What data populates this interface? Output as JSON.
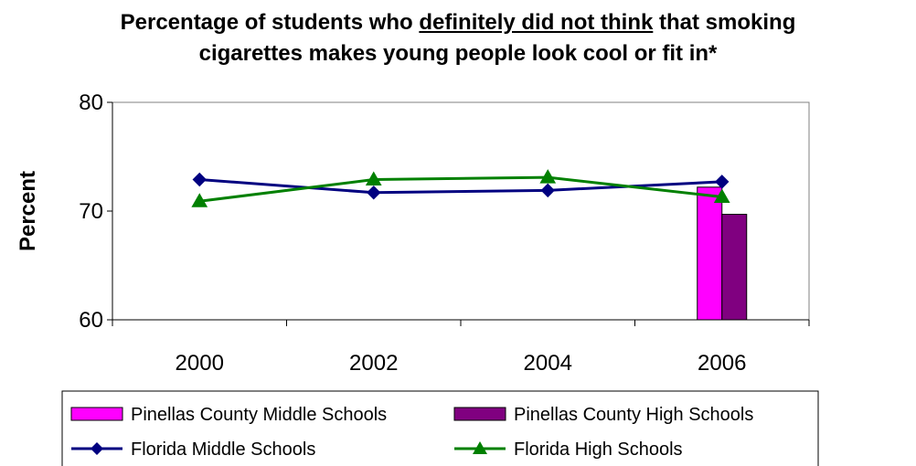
{
  "chart_data": {
    "type": "bar+line",
    "title": {
      "line1_prefix": "Percentage of students who ",
      "line1_emphasis": "definitely did not think",
      "line1_suffix": " that smoking",
      "line2": "cigarettes makes young people look cool or fit in*"
    },
    "ylabel": "Percent",
    "xlabel": "",
    "ylim": [
      60,
      80
    ],
    "yticks": [
      "60",
      "70",
      "80"
    ],
    "categories": [
      "2000",
      "2002",
      "2004",
      "2006"
    ],
    "bar_series": [
      {
        "name": "Pinellas County Middle Schools",
        "color": "#FF00FF",
        "values": [
          null,
          null,
          null,
          72.2
        ]
      },
      {
        "name": "Pinellas County High Schools",
        "color": "#800080",
        "values": [
          null,
          null,
          null,
          69.7
        ]
      }
    ],
    "line_series": [
      {
        "name": "Florida Middle Schools",
        "color": "#000080",
        "marker": "diamond",
        "values": [
          72.9,
          71.7,
          71.9,
          72.7
        ]
      },
      {
        "name": "Florida High Schools",
        "color": "#008000",
        "marker": "triangle",
        "values": [
          70.9,
          72.9,
          73.1,
          71.3
        ]
      }
    ],
    "grid": false,
    "legend": "bottom"
  }
}
